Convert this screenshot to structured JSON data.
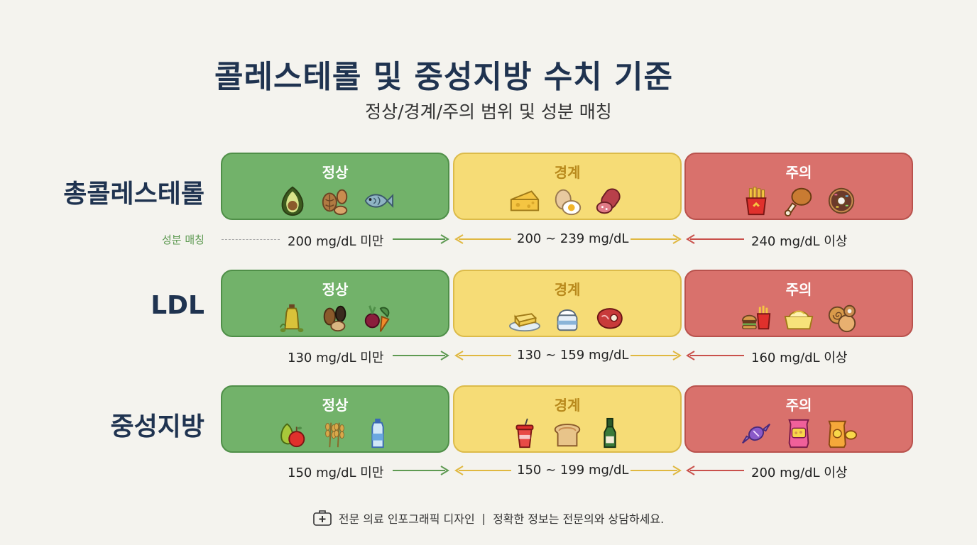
{
  "title": "콜레스테롤 및 중성지방 수치 기준",
  "subtitle": "정상/경계/주의 범위 및 성분 매칭",
  "match_label": "성분 매칭",
  "category_labels": {
    "normal": "정상",
    "border": "경계",
    "caution": "주의"
  },
  "colors": {
    "normal": "#72b26a",
    "border": "#f6dc76",
    "caution": "#d9716c",
    "title": "#1f3350"
  },
  "rows": [
    {
      "label": "총콜레스테롤",
      "normal": {
        "range": "200 mg/dL 미만",
        "icons": [
          "avocado-icon",
          "nuts-icon",
          "fish-icon"
        ]
      },
      "border": {
        "range": "200 ~ 239 mg/dL",
        "icons": [
          "cheese-icon",
          "egg-icon",
          "sausage-icon"
        ]
      },
      "caution": {
        "range": "240 mg/dL 이상",
        "icons": [
          "fries-icon",
          "fried-chicken-icon",
          "donut-icon"
        ]
      }
    },
    {
      "label": "LDL",
      "normal": {
        "range": "130 mg/dL 미만",
        "icons": [
          "olive-oil-icon",
          "seeds-icon",
          "vegetables-icon"
        ]
      },
      "border": {
        "range": "130 ~ 159 mg/dL",
        "icons": [
          "butter-icon",
          "cream-icon",
          "red-meat-icon"
        ]
      },
      "caution": {
        "range": "160 mg/dL 이상",
        "icons": [
          "fast-food-icon",
          "margarine-icon",
          "pastry-icon"
        ]
      }
    },
    {
      "label": "중성지방",
      "normal": {
        "range": "150 mg/dL 미만",
        "icons": [
          "fruit-icon",
          "grain-icon",
          "water-bottle-icon"
        ]
      },
      "border": {
        "range": "150 ~ 199 mg/dL",
        "icons": [
          "soda-icon",
          "bread-icon",
          "alcohol-icon"
        ]
      },
      "caution": {
        "range": "200 mg/dL 이상",
        "icons": [
          "candy-icon",
          "snack-bag-icon",
          "chips-icon"
        ]
      }
    }
  ],
  "footer": {
    "icon": "medical-kit-icon",
    "left": "전문 의료 인포그래픽 디자인",
    "separator": "|",
    "right": "정확한 정보는 전문의와 상담하세요."
  }
}
